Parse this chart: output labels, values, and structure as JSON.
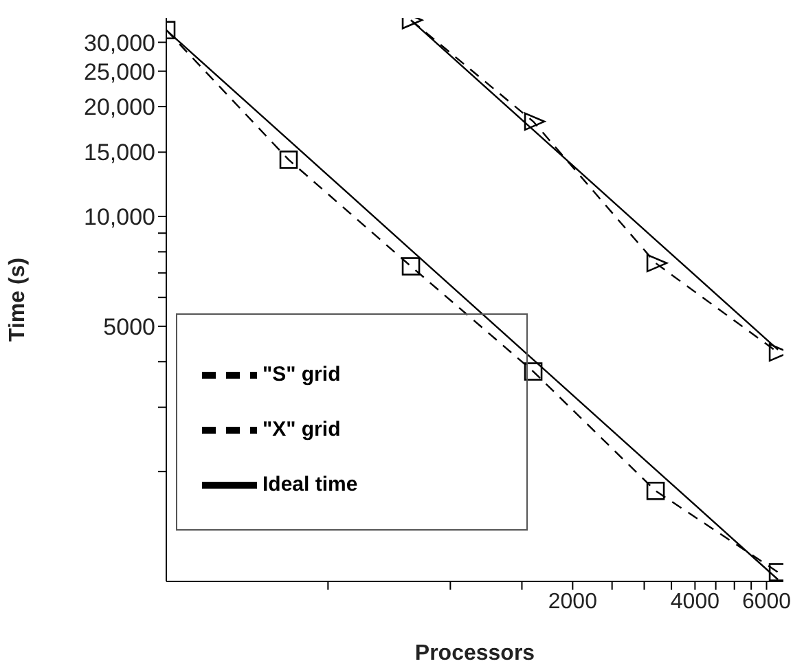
{
  "chart_data": {
    "type": "line",
    "xlabel": "Processors",
    "ylabel": "Time (s)",
    "log": "xy",
    "grid": false,
    "legend": "bottom left",
    "xlim": [
      200,
      6600
    ],
    "ylim": [
      1000,
      35000
    ],
    "xticks": [
      {
        "value": 500,
        "label": null
      },
      {
        "value": 1000,
        "label": null
      },
      {
        "value": 1500,
        "label": null
      },
      2000,
      {
        "value": 2500,
        "label": null
      },
      {
        "value": 3000,
        "label": null
      },
      {
        "value": 3500,
        "label": null
      },
      4000,
      {
        "value": 4500,
        "label": null
      },
      {
        "value": 5000,
        "label": null
      },
      {
        "value": 5500,
        "label": null
      },
      6000
    ],
    "yticks": [
      {
        "value": 2000,
        "label": null
      },
      {
        "value": 3000,
        "label": null
      },
      {
        "value": 4000,
        "label": null
      },
      5000,
      {
        "value": 6000,
        "label": null
      },
      {
        "value": 7000,
        "label": null
      },
      {
        "value": 8000,
        "label": null
      },
      {
        "value": 9000,
        "label": null
      },
      {
        "value": 10000,
        "label": "10,000"
      },
      {
        "value": 15000,
        "label": "15,000"
      },
      {
        "value": 20000,
        "label": "20,000"
      },
      {
        "value": 25000,
        "label": "25,000"
      },
      {
        "value": 30000,
        "label": "30,000"
      }
    ],
    "series": [
      {
        "name": "\"X\" grid",
        "color": "#000000",
        "marker": "square",
        "line_style": "dashed",
        "x": [
          200,
          400,
          800,
          1600,
          3200,
          6400
        ],
        "values": [
          32400,
          14300,
          7300,
          3760,
          1770,
          1060
        ]
      },
      {
        "name": "\"S\" grid",
        "color": "#000000",
        "marker": "triangle",
        "line_style": "dashed",
        "x": [
          800,
          1600,
          3200,
          6400
        ],
        "values": [
          34500,
          18200,
          7450,
          4240
        ]
      },
      {
        "name": "Ideal time",
        "color": "#000000",
        "marker": "none",
        "line_style": "solid",
        "x": [
          200,
          400,
          800,
          1600,
          3200,
          6400
        ],
        "values": [
          32400,
          16200,
          8100,
          4050,
          2025,
          1012
        ]
      },
      {
        "color": "#000000",
        "marker": "none",
        "line_style": "solid",
        "x": [
          800,
          1600,
          3200,
          6400
        ],
        "values": [
          34500,
          17250,
          8625,
          4312
        ]
      }
    ]
  }
}
